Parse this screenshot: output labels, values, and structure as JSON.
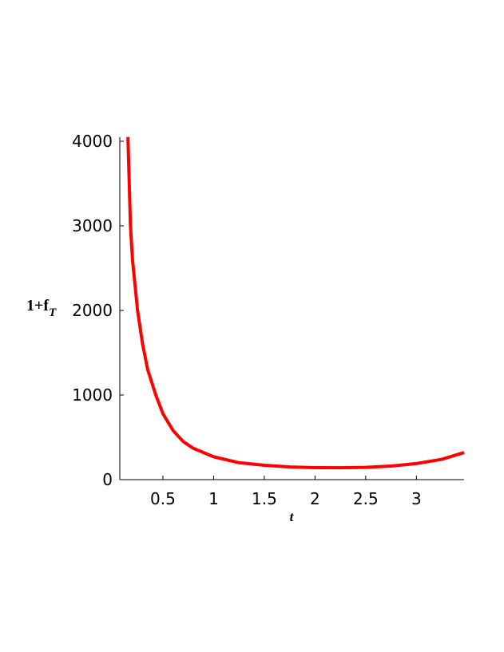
{
  "chart_data": {
    "type": "line",
    "xlabel": "t",
    "ylabel": {
      "main": "1+f",
      "sub": "T"
    },
    "x": [
      0.155,
      0.18,
      0.2,
      0.25,
      0.3,
      0.35,
      0.43,
      0.5,
      0.6,
      0.7,
      0.8,
      1,
      1.25,
      1.5,
      1.75,
      2,
      2.25,
      2.5,
      2.75,
      3,
      3.25,
      3.47
    ],
    "series": [
      {
        "color": "#ff0000",
        "values": [
          4050,
          3000,
          2600,
          2000,
          1600,
          1300,
          1000,
          780,
          580,
          450,
          370,
          270,
          200,
          170,
          150,
          142,
          140,
          145,
          160,
          190,
          240,
          320
        ]
      }
    ],
    "xlim": [
      0.075,
      3.47
    ],
    "ylim": [
      0,
      4050
    ],
    "xticks": [
      0.5,
      1,
      1.5,
      2,
      2.5,
      3
    ],
    "yticks": [
      0,
      1000,
      2000,
      3000,
      4000
    ]
  }
}
